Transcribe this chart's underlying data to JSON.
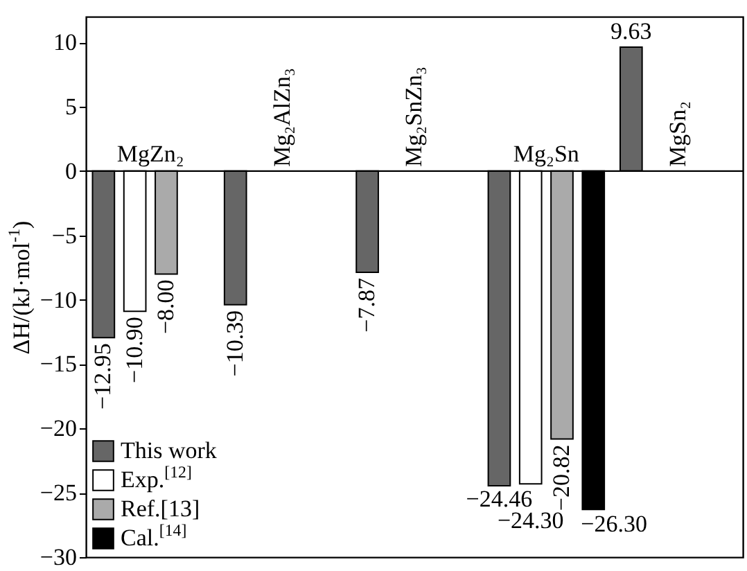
{
  "chart_data": {
    "type": "bar",
    "ylabel": "ΔH/(kJ·mol$^{-1}$)",
    "categories": [
      "MgZn₂",
      "Mg₂AlZn₃",
      "Mg₂SnZn₃",
      "Mg₂Sn",
      "MgSn₂"
    ],
    "series": [
      {
        "name": "This work",
        "color": "#666666",
        "values": [
          -12.95,
          -10.39,
          -7.87,
          -24.46,
          9.63
        ],
        "value_labels": [
          "−12.95",
          "−10.39",
          "−7.87",
          "−24.46",
          "9.63"
        ]
      },
      {
        "name": "Exp.$^{[12]}$",
        "color": "#ffffff",
        "values": [
          -10.9,
          null,
          null,
          -24.3,
          null
        ],
        "value_labels": [
          "−10.90",
          null,
          null,
          "−24.30",
          null
        ]
      },
      {
        "name": "Ref.[13]",
        "color": "#aaaaaa",
        "values": [
          -8.0,
          null,
          null,
          -20.82,
          null
        ],
        "value_labels": [
          "−8.00",
          null,
          null,
          "−20.82",
          null
        ]
      },
      {
        "name": "Cal.$^{[14]}$",
        "color": "#000000",
        "values": [
          null,
          null,
          null,
          -26.3,
          null
        ],
        "value_labels": [
          null,
          null,
          null,
          "−26.30",
          null
        ]
      }
    ],
    "ylim": [
      -30,
      12
    ],
    "yticks": [
      -30,
      -25,
      -20,
      -15,
      -10,
      -5,
      0,
      5,
      10
    ],
    "legend": "bottom left",
    "grid": false
  }
}
